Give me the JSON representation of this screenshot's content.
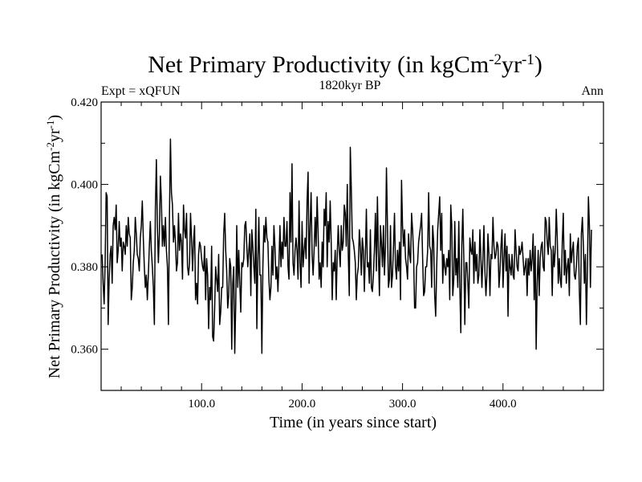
{
  "chart_data": {
    "type": "line",
    "title": "Net Primary Productivity (in kgCm",
    "title_sup1": "-2",
    "title_mid": "yr",
    "title_sup2": "-1",
    "title_end": ")",
    "subtitle": "1820kyr BP",
    "left_label": "Expt = xQFUN",
    "right_label": "Ann",
    "xlabel": "Time (in years since start)",
    "ylabel": "Net Primary Productivity (in kgCm",
    "ylabel_sup1": "-2",
    "ylabel_mid": "yr",
    "ylabel_sup2": "-1",
    "ylabel_end": ")",
    "xlim": [
      0,
      500
    ],
    "ylim": [
      0.35,
      0.42
    ],
    "x_ticks": [
      100,
      200,
      300,
      400
    ],
    "x_tick_labels": [
      "100.0",
      "200.0",
      "300.0",
      "400.0"
    ],
    "y_ticks": [
      0.36,
      0.38,
      0.4,
      0.42
    ],
    "y_tick_labels": [
      "0.360",
      "0.380",
      "0.400",
      "0.420"
    ],
    "x_start": 1,
    "x_step": 1,
    "line_color": "#000000",
    "series": [
      {
        "name": "Net Primary Productivity",
        "values": [
          0.383,
          0.376,
          0.371,
          0.381,
          0.398,
          0.397,
          0.366,
          0.377,
          0.383,
          0.385,
          0.376,
          0.39,
          0.392,
          0.389,
          0.395,
          0.381,
          0.384,
          0.391,
          0.385,
          0.387,
          0.379,
          0.386,
          0.385,
          0.383,
          0.39,
          0.385,
          0.392,
          0.388,
          0.387,
          0.372,
          0.375,
          0.381,
          0.384,
          0.392,
          0.388,
          0.383,
          0.382,
          0.379,
          0.387,
          0.39,
          0.396,
          0.387,
          0.38,
          0.375,
          0.378,
          0.372,
          0.378,
          0.385,
          0.391,
          0.384,
          0.38,
          0.375,
          0.366,
          0.394,
          0.406,
          0.39,
          0.381,
          0.388,
          0.402,
          0.396,
          0.385,
          0.39,
          0.385,
          0.392,
          0.384,
          0.38,
          0.366,
          0.392,
          0.411,
          0.398,
          0.395,
          0.386,
          0.39,
          0.386,
          0.379,
          0.381,
          0.393,
          0.384,
          0.388,
          0.386,
          0.377,
          0.395,
          0.389,
          0.387,
          0.393,
          0.38,
          0.378,
          0.381,
          0.393,
          0.387,
          0.379,
          0.386,
          0.39,
          0.372,
          0.376,
          0.371,
          0.383,
          0.386,
          0.385,
          0.382,
          0.38,
          0.379,
          0.385,
          0.372,
          0.382,
          0.378,
          0.365,
          0.375,
          0.372,
          0.385,
          0.363,
          0.362,
          0.37,
          0.38,
          0.377,
          0.374,
          0.383,
          0.366,
          0.369,
          0.375,
          0.375,
          0.388,
          0.393,
          0.384,
          0.379,
          0.37,
          0.373,
          0.382,
          0.38,
          0.36,
          0.376,
          0.38,
          0.359,
          0.371,
          0.39,
          0.375,
          0.384,
          0.376,
          0.369,
          0.381,
          0.38,
          0.382,
          0.39,
          0.391,
          0.385,
          0.38,
          0.384,
          0.388,
          0.373,
          0.389,
          0.385,
          0.38,
          0.376,
          0.394,
          0.365,
          0.382,
          0.392,
          0.378,
          0.378,
          0.359,
          0.38,
          0.39,
          0.386,
          0.392,
          0.387,
          0.386,
          0.377,
          0.372,
          0.375,
          0.385,
          0.378,
          0.39,
          0.385,
          0.377,
          0.38,
          0.374,
          0.381,
          0.39,
          0.38,
          0.386,
          0.382,
          0.392,
          0.385,
          0.385,
          0.391,
          0.38,
          0.377,
          0.398,
          0.386,
          0.405,
          0.381,
          0.378,
          0.384,
          0.387,
          0.384,
          0.377,
          0.396,
          0.381,
          0.375,
          0.391,
          0.38,
          0.384,
          0.387,
          0.382,
          0.396,
          0.403,
          0.376,
          0.39,
          0.398,
          0.383,
          0.378,
          0.384,
          0.392,
          0.385,
          0.397,
          0.388,
          0.377,
          0.381,
          0.375,
          0.386,
          0.38,
          0.394,
          0.39,
          0.398,
          0.38,
          0.391,
          0.386,
          0.396,
          0.386,
          0.372,
          0.381,
          0.379,
          0.384,
          0.372,
          0.383,
          0.39,
          0.384,
          0.38,
          0.39,
          0.384,
          0.386,
          0.395,
          0.393,
          0.385,
          0.4,
          0.383,
          0.373,
          0.409,
          0.399,
          0.387,
          0.386,
          0.384,
          0.381,
          0.372,
          0.378,
          0.38,
          0.389,
          0.385,
          0.378,
          0.387,
          0.384,
          0.374,
          0.383,
          0.394,
          0.38,
          0.381,
          0.376,
          0.389,
          0.375,
          0.374,
          0.378,
          0.384,
          0.393,
          0.379,
          0.397,
          0.383,
          0.373,
          0.39,
          0.386,
          0.38,
          0.39,
          0.378,
          0.385,
          0.404,
          0.39,
          0.375,
          0.377,
          0.39,
          0.375,
          0.378,
          0.385,
          0.393,
          0.38,
          0.377,
          0.384,
          0.379,
          0.386,
          0.372,
          0.401,
          0.39,
          0.385,
          0.389,
          0.382,
          0.38,
          0.377,
          0.388,
          0.383,
          0.381,
          0.393,
          0.389,
          0.383,
          0.37,
          0.37,
          0.38,
          0.381,
          0.386,
          0.388,
          0.39,
          0.393,
          0.382,
          0.373,
          0.374,
          0.38,
          0.38,
          0.384,
          0.398,
          0.385,
          0.384,
          0.375,
          0.39,
          0.386,
          0.373,
          0.368,
          0.38,
          0.389,
          0.393,
          0.397,
          0.384,
          0.393,
          0.376,
          0.383,
          0.38,
          0.378,
          0.382,
          0.38,
          0.384,
          0.372,
          0.395,
          0.39,
          0.373,
          0.377,
          0.391,
          0.378,
          0.382,
          0.375,
          0.391,
          0.375,
          0.364,
          0.385,
          0.394,
          0.382,
          0.366,
          0.381,
          0.381,
          0.376,
          0.37,
          0.387,
          0.384,
          0.383,
          0.389,
          0.376,
          0.386,
          0.379,
          0.383,
          0.376,
          0.378,
          0.389,
          0.382,
          0.375,
          0.382,
          0.39,
          0.379,
          0.373,
          0.378,
          0.388,
          0.383,
          0.373,
          0.383,
          0.382,
          0.392,
          0.385,
          0.382,
          0.383,
          0.386,
          0.385,
          0.375,
          0.379,
          0.385,
          0.389,
          0.375,
          0.382,
          0.388,
          0.379,
          0.385,
          0.368,
          0.383,
          0.38,
          0.378,
          0.383,
          0.378,
          0.377,
          0.389,
          0.384,
          0.38,
          0.379,
          0.385,
          0.383,
          0.384,
          0.386,
          0.382,
          0.378,
          0.38,
          0.382,
          0.373,
          0.382,
          0.378,
          0.384,
          0.379,
          0.382,
          0.388,
          0.372,
          0.385,
          0.36,
          0.376,
          0.384,
          0.373,
          0.382,
          0.385,
          0.386,
          0.38,
          0.379,
          0.392,
          0.391,
          0.386,
          0.383,
          0.392,
          0.385,
          0.384,
          0.373,
          0.385,
          0.38,
          0.384,
          0.394,
          0.387,
          0.376,
          0.382,
          0.377,
          0.375,
          0.386,
          0.393,
          0.378,
          0.384,
          0.376,
          0.38,
          0.382,
          0.373,
          0.388,
          0.381,
          0.384,
          0.386,
          0.378,
          0.377,
          0.38,
          0.385,
          0.387,
          0.374,
          0.366,
          0.388,
          0.392,
          0.385,
          0.376,
          0.383,
          0.366,
          0.379,
          0.397,
          0.39,
          0.375,
          0.389
        ]
      }
    ]
  }
}
